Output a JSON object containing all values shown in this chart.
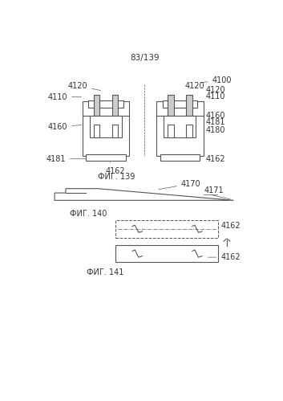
{
  "page_label": "83/139",
  "fig139_label": "ФИГ. 139",
  "fig140_label": "ФИГ. 140",
  "fig141_label": "ФИГ. 141",
  "bg_color": "#ffffff",
  "line_color": "#555555",
  "light_gray": "#cccccc",
  "dark_gray": "#888888",
  "label_color": "#333333",
  "font_size": 7,
  "title_font_size": 7.5
}
